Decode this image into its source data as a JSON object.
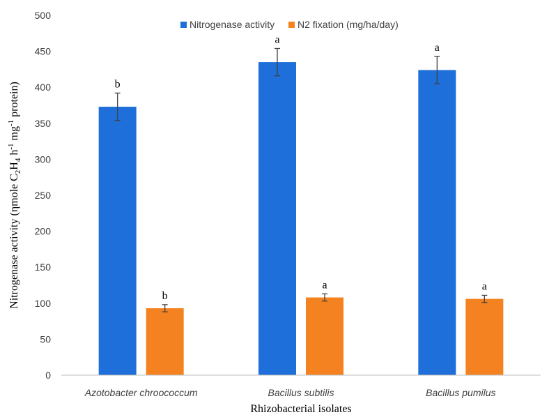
{
  "chart_data": {
    "type": "bar",
    "categories": [
      "Azotobacter chroococcum",
      "Bacillus subtilis",
      "Bacillus pumilus"
    ],
    "series": [
      {
        "name": "Nitrogenase activity",
        "color": "#1E6FD9",
        "values": [
          373,
          435,
          424
        ],
        "errors": [
          19,
          19,
          19
        ],
        "labels": [
          "b",
          "a",
          "a"
        ]
      },
      {
        "name": "N2 fixation (mg/ha/day)",
        "color": "#F58220",
        "values": [
          93,
          108,
          106
        ],
        "errors": [
          5,
          5,
          5
        ],
        "labels": [
          "b",
          "a",
          "a"
        ]
      }
    ],
    "ylim": [
      0,
      500
    ],
    "yticks": [
      0,
      50,
      100,
      150,
      200,
      250,
      300,
      350,
      400,
      450,
      500
    ],
    "xlabel": "Rhizobacterial isolates",
    "ylabel": {
      "parts": [
        {
          "text": "Nitrogenase activity (ηmole C",
          "shift": "base"
        },
        {
          "text": "2",
          "shift": "sub"
        },
        {
          "text": "H",
          "shift": "base"
        },
        {
          "text": "4",
          "shift": "sub"
        },
        {
          "text": " h",
          "shift": "base"
        },
        {
          "text": "-1",
          "shift": "sup"
        },
        {
          "text": " mg",
          "shift": "base"
        },
        {
          "text": "-1",
          "shift": "sup"
        },
        {
          "text": " protein)",
          "shift": "base"
        }
      ]
    },
    "legend_position": "top-center",
    "grid": false
  }
}
